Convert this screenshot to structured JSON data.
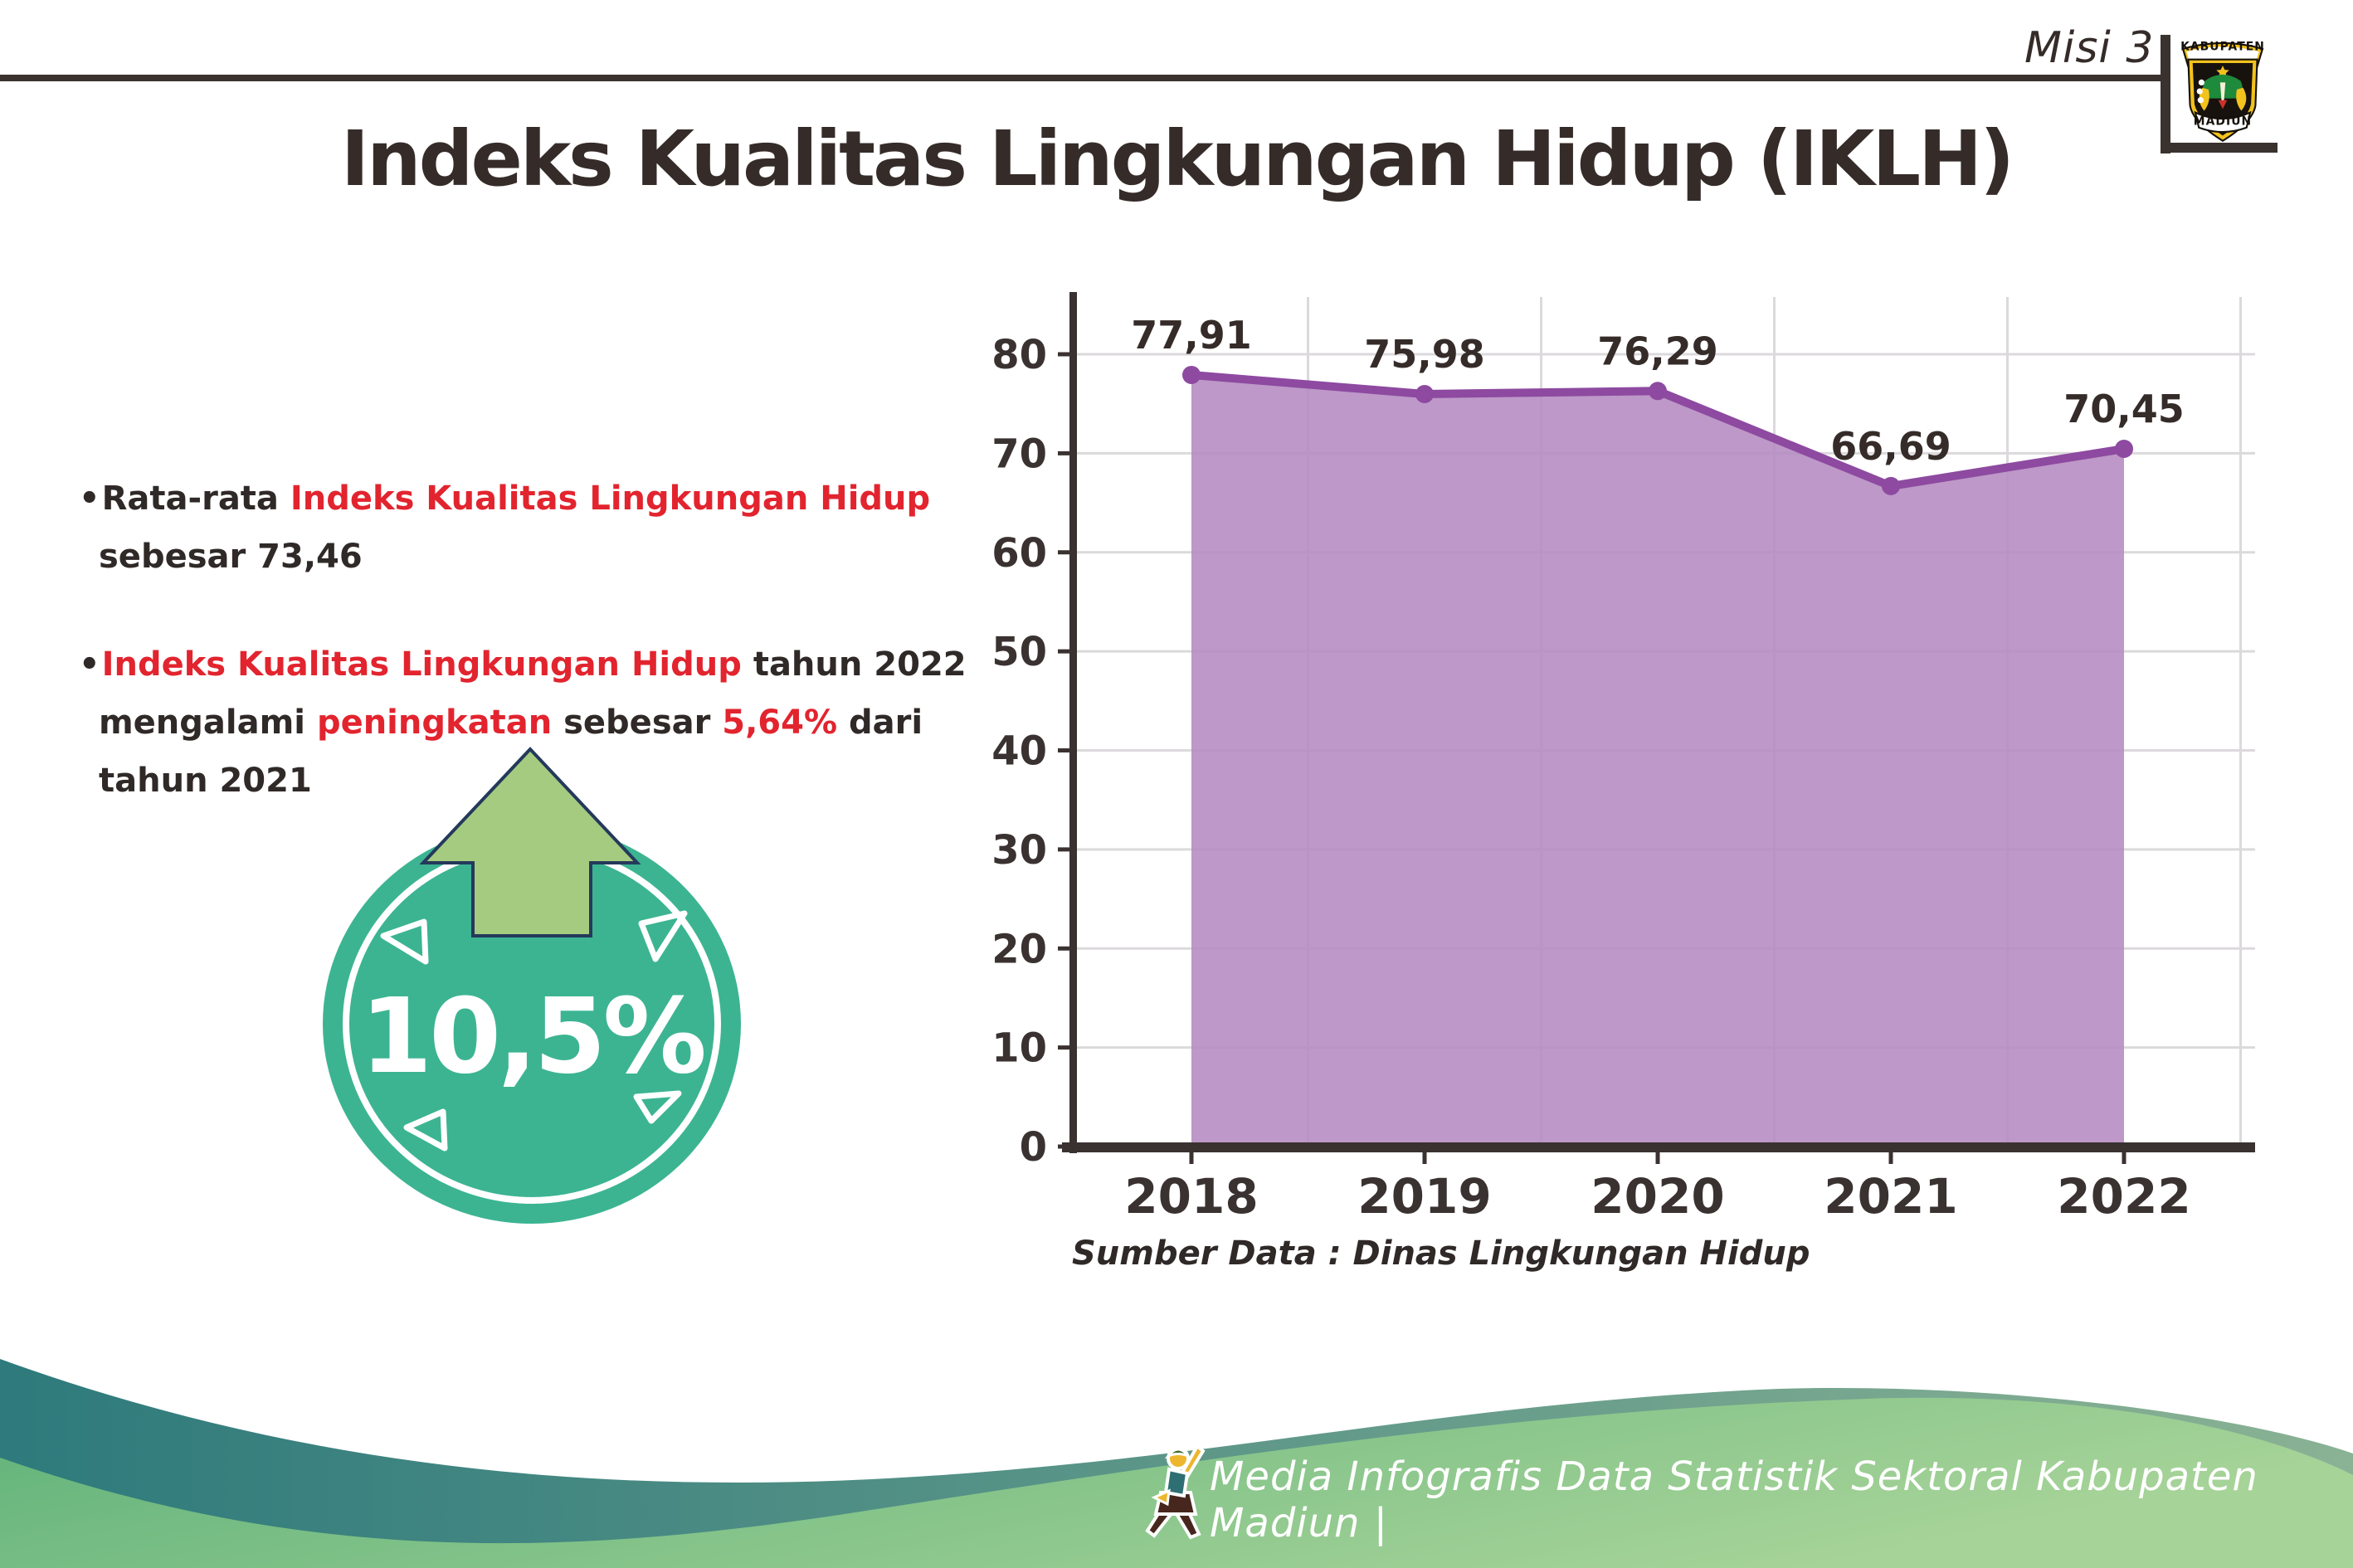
{
  "header": {
    "misi_label": "Misi 3",
    "logo_top": "KABUPATEN",
    "logo_bottom": "MADIUN"
  },
  "title": "Indeks Kualitas Lingkungan Hidup (IKLH)",
  "bullets": [
    {
      "lines": [
        [
          {
            "t": "Rata-rata ",
            "c": "dark"
          },
          {
            "t": "Indeks Kualitas Lingkungan Hidup",
            "c": "red"
          }
        ],
        [
          {
            "t": "sebesar 73,46",
            "c": "dark"
          }
        ]
      ]
    },
    {
      "lines": [
        [
          {
            "t": "Indeks Kualitas Lingkungan Hidup",
            "c": "red"
          },
          {
            "t": " tahun 2022",
            "c": "dark"
          }
        ],
        [
          {
            "t": "mengalami ",
            "c": "dark"
          },
          {
            "t": "peningkatan",
            "c": "red"
          },
          {
            "t": " sebesar ",
            "c": "dark"
          },
          {
            "t": "5,64%",
            "c": "red"
          },
          {
            "t": " dari",
            "c": "dark"
          }
        ],
        [
          {
            "t": "tahun 2021",
            "c": "dark"
          }
        ]
      ]
    }
  ],
  "badge": {
    "value": "10,5%",
    "arrow_icon": "up-arrow-icon"
  },
  "chart_data": {
    "type": "area",
    "title": "",
    "xlabel": "",
    "ylabel": "",
    "categories": [
      "2018",
      "2019",
      "2020",
      "2021",
      "2022"
    ],
    "values": [
      77.91,
      75.98,
      76.29,
      66.69,
      70.45
    ],
    "value_labels": [
      "77,91",
      "75,98",
      "76,29",
      "66,69",
      "70,45"
    ],
    "ylim": [
      0,
      80
    ],
    "ytick_step": 10,
    "grid": true,
    "legend": false,
    "source_note": "Sumber Data : Dinas Lingkungan Hidup"
  },
  "footer": {
    "caption": "Media Infografis Data Statistik Sektoral Kabupaten Madiun |"
  },
  "colors": {
    "ink": "#352c29",
    "text": "#2f2927",
    "red": "#e2242e",
    "rule": "#3a322f",
    "axis": "#3a3231",
    "grid": "#dcd9dc",
    "area": "#b48ac0",
    "line": "#8d4aa0",
    "badge_teal": "#3cb492",
    "arrow_green": "#a5cb80",
    "arrow_outline": "#24395b",
    "teal_wave_start": "#2e7a7c",
    "teal_wave_end": "#8ab294",
    "green_wave_start": "#5fb27a",
    "green_wave_end": "#a6d398",
    "logo_gold": "#f2c21d",
    "logo_black": "#17120d",
    "logo_green": "#1e8a3c",
    "mascot_yellow": "#edb62e",
    "mascot_teal": "#2e6f73",
    "mascot_brown": "#46261d",
    "mascot_cap": "#3d6b31"
  }
}
